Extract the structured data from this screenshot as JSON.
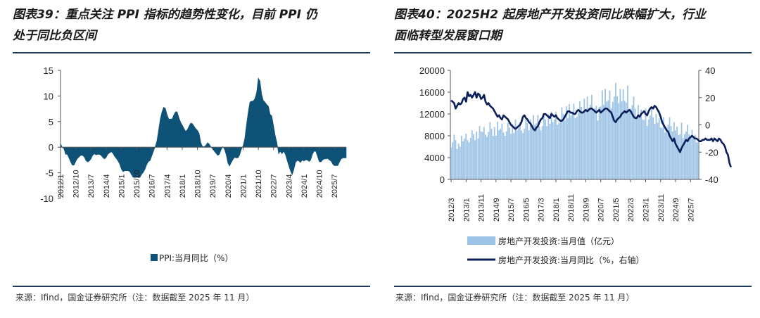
{
  "left_panel": {
    "title": "图表39：重点关注 PPI 指标的趋势性变化，目前 PPI 仍处于同比负区间",
    "title_line1": "图表39：重点关注 PPI 指标的趋势性变化，目前 PPI 仍",
    "title_line2": "处于同比负区间",
    "source": "来源：Ifind，国金证券研究所（注：数据截至 2025 年 11 月）"
  },
  "right_panel": {
    "title": "图表40：2025H2 起房地产开发投资同比跌幅扩大，行业面临转型发展窗口期",
    "title_line1": "图表40：2025H2 起房地产开发投资同比跌幅扩大，行业",
    "title_line2": "面临转型发展窗口期",
    "source": "来源：Ifind，国金证券研究所（注：数据截至 2025 年 11 月）"
  },
  "colors": {
    "ppi_area": "#0f5278",
    "bar": "#9dc3e6",
    "line": "#0b1f5c"
  },
  "chart_data": [
    {
      "type": "area",
      "title": "",
      "series_name": "PPI:当月同比（%）",
      "ylim": [
        -10,
        15
      ],
      "yticks": [
        15,
        10,
        5,
        0,
        -5,
        -10
      ],
      "x_tick_labels": [
        "2012/1",
        "2012/10",
        "2013/7",
        "2014/4",
        "2015/1",
        "2015/10",
        "2016/7",
        "2017/4",
        "2018/1",
        "2018/10",
        "2019/7",
        "2020/4",
        "2021/1",
        "2021/10",
        "2022/7",
        "2023/4",
        "2024/1",
        "2024/10",
        "2025/7"
      ],
      "x_start": "2012/1",
      "points_per_year": 12,
      "values": [
        0.7,
        0.0,
        -0.3,
        -1.4,
        -1.4,
        -2.1,
        -2.9,
        -3.5,
        -3.5,
        -2.8,
        -2.2,
        -1.9,
        -1.6,
        -1.6,
        -1.9,
        -2.6,
        -2.9,
        -2.7,
        -2.3,
        -1.6,
        -1.3,
        -1.5,
        -1.4,
        -1.4,
        -1.6,
        -2.0,
        -2.3,
        -2.0,
        -1.4,
        -1.1,
        -0.9,
        -1.2,
        -1.8,
        -2.2,
        -2.7,
        -3.3,
        -4.3,
        -4.8,
        -4.6,
        -4.6,
        -4.6,
        -4.8,
        -5.4,
        -5.9,
        -5.9,
        -5.9,
        -5.9,
        -5.9,
        -5.3,
        -4.9,
        -4.3,
        -3.4,
        -2.8,
        -2.6,
        -1.7,
        -0.8,
        0.1,
        1.2,
        3.3,
        5.5,
        6.9,
        7.8,
        7.6,
        6.4,
        5.5,
        5.5,
        5.5,
        6.3,
        6.9,
        6.9,
        5.8,
        4.9,
        4.3,
        3.7,
        3.1,
        3.4,
        4.1,
        4.7,
        4.6,
        4.1,
        3.6,
        3.3,
        2.7,
        0.9,
        0.1,
        0.1,
        0.4,
        0.9,
        0.6,
        0.0,
        -0.3,
        -0.8,
        -1.2,
        -1.6,
        -1.4,
        -0.5,
        0.1,
        -0.4,
        -1.5,
        -3.1,
        -3.7,
        -3.0,
        -2.4,
        -2.0,
        -2.1,
        -2.1,
        -1.5,
        -0.4,
        0.3,
        1.7,
        4.4,
        6.8,
        8.8,
        9.0,
        9.0,
        9.5,
        10.7,
        13.5,
        12.9,
        10.3,
        9.1,
        8.8,
        8.3,
        8.0,
        6.4,
        6.1,
        4.2,
        2.3,
        0.9,
        -1.3,
        -0.8,
        -1.3,
        -0.8,
        -1.4,
        -2.5,
        -3.6,
        -4.6,
        -5.4,
        -4.4,
        -3.0,
        -2.6,
        -2.7,
        -3.0,
        -2.5,
        -2.7,
        -2.5,
        -2.5,
        -2.8,
        -2.5,
        -1.4,
        -0.8,
        -0.8,
        -1.8,
        -2.8,
        -2.9,
        -2.5,
        -2.3,
        -2.3,
        -2.2,
        -2.5,
        -2.7,
        -3.3,
        -3.6,
        -3.6,
        -3.6,
        -2.9,
        -2.3,
        -2.1,
        -2.1,
        -2.1
      ]
    },
    {
      "type": "bar+line",
      "title": "",
      "x_start": "2012/3",
      "x_tick_labels": [
        "2012/3",
        "2013/1",
        "2013/11",
        "2014/9",
        "2015/7",
        "2016/5",
        "2017/3",
        "2018/1",
        "2018/11",
        "2019/9",
        "2020/7",
        "2021/5",
        "2022/3",
        "2023/1",
        "2023/11",
        "2024/9",
        "2025/7"
      ],
      "y_left": {
        "label": "房地产开发投资:当月值（亿元）",
        "ylim": [
          0,
          20000
        ],
        "yticks": [
          20000,
          16000,
          12000,
          8000,
          4000,
          0
        ]
      },
      "y_right": {
        "label": "房地产开发投资:当月同比（%，右轴）",
        "ylim": [
          -40,
          40
        ],
        "yticks": [
          40,
          20,
          0,
          -20,
          -40
        ]
      },
      "series": [
        {
          "name": "房地产开发投资:当月值（亿元）",
          "axis": "left",
          "type": "bar",
          "values": [
            5800,
            6800,
            8200,
            7200,
            5600,
            6600,
            6000,
            8000,
            7000,
            7500,
            8400,
            7200,
            6800,
            7600,
            9000,
            8300,
            7200,
            8800,
            7500,
            9800,
            8800,
            8700,
            9600,
            8200,
            7800,
            8700,
            10500,
            9300,
            8000,
            9600,
            8000,
            10600,
            9000,
            9300,
            10200,
            8600,
            8000,
            8800,
            10400,
            9500,
            8400,
            10200,
            8500,
            11000,
            9000,
            9400,
            10500,
            9000,
            8500,
            9300,
            11000,
            10300,
            9000,
            11000,
            9500,
            11800,
            10000,
            10300,
            11800,
            9700,
            9000,
            9800,
            11600,
            11000,
            9800,
            11900,
            10200,
            12400,
            10500,
            11000,
            12400,
            10000,
            10300,
            11000,
            13200,
            12000,
            10800,
            13400,
            11200,
            13800,
            11700,
            12300,
            13900,
            11200,
            11500,
            12300,
            14300,
            13300,
            12100,
            14800,
            12500,
            15200,
            13100,
            13700,
            15500,
            12600,
            13000,
            13500,
            10800,
            13300,
            13400,
            16300,
            13700,
            16600,
            14300,
            14500,
            16300,
            13000,
            14200,
            15200,
            17700,
            15200,
            14000,
            16600,
            14300,
            16500,
            14400,
            14100,
            17200,
            12500,
            13000,
            13600,
            15200,
            13000,
            11500,
            13600,
            11600,
            12800,
            11000,
            10900,
            13000,
            9800,
            11000,
            11700,
            13200,
            11400,
            10200,
            12000,
            10400,
            11200,
            9500,
            9400,
            11400,
            8600,
            9500,
            10000,
            11400,
            9800,
            8800,
            10500,
            9000,
            9700,
            8100,
            8300,
            10400,
            7600,
            8300,
            8800,
            10000,
            8300,
            7700,
            9100,
            7800,
            8200,
            6800,
            6800
          ]
        },
        {
          "name": "房地产开发投资:当月同比（%，右轴）",
          "axis": "right",
          "type": "line",
          "values": [
            18,
            17,
            16,
            12,
            14,
            16,
            15,
            16,
            19,
            20,
            17,
            24,
            21,
            22,
            20,
            22,
            24,
            20,
            23,
            22,
            19,
            20,
            22,
            17,
            15,
            16,
            14,
            13,
            12,
            10,
            8,
            6,
            7,
            5,
            4,
            7,
            6,
            5,
            4,
            2,
            0,
            -1,
            -2,
            -3,
            -2,
            -1,
            0,
            2,
            6,
            7,
            5,
            4,
            2,
            1,
            -1,
            -3,
            -4,
            -2,
            -1,
            2,
            4,
            5,
            8,
            8,
            7,
            6,
            5,
            8,
            7,
            6,
            7,
            5,
            4,
            3,
            3,
            4,
            6,
            8,
            10,
            10,
            9,
            9,
            8,
            8,
            10,
            11,
            10,
            9,
            9,
            10,
            11,
            10,
            11,
            12,
            12,
            11,
            10,
            9,
            10,
            11,
            9,
            10,
            11,
            12,
            12,
            11,
            10,
            9,
            6,
            3,
            2,
            4,
            5,
            6,
            8,
            9,
            10,
            9,
            10,
            11,
            10,
            8,
            6,
            5,
            5,
            7,
            6,
            8,
            9,
            10,
            8,
            7,
            10,
            12,
            13,
            12,
            14,
            13,
            11,
            9,
            6,
            2,
            0,
            -2,
            -4,
            -5,
            -8,
            -10,
            -12,
            -10,
            -14,
            -16,
            -18,
            -20,
            -17,
            -15,
            -13,
            -11,
            -12,
            -10,
            -9,
            -8,
            -9,
            -10,
            -10,
            -11,
            -12,
            -12,
            -11,
            -11,
            -10,
            -11,
            -11,
            -11,
            -10,
            -12,
            -10,
            -11,
            -12,
            -10,
            -11,
            -13,
            -14,
            -16,
            -20,
            -22,
            -28,
            -31
          ]
        }
      ]
    }
  ]
}
